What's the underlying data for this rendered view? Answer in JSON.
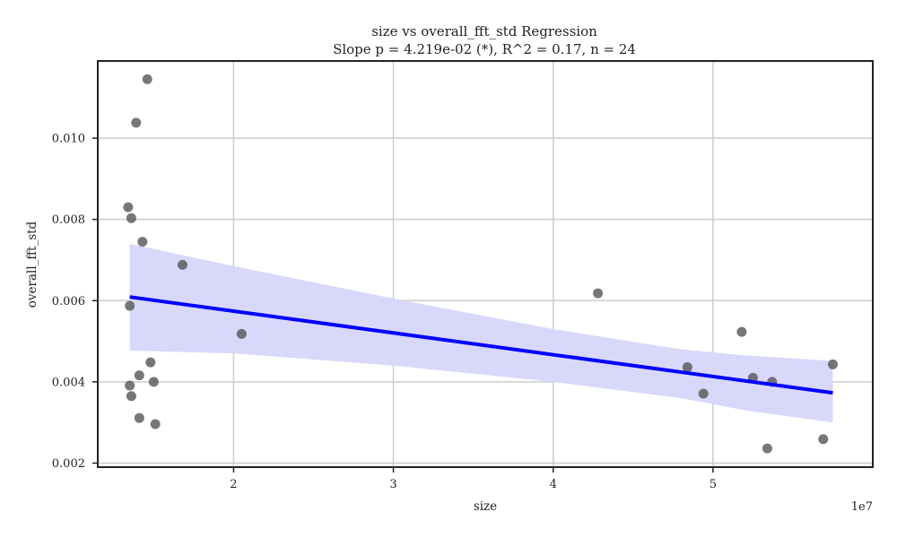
{
  "chart_data": {
    "type": "scatter",
    "title_line1": "size vs overall_fft_std Regression",
    "title_line2": "Slope p = 4.219e-02 (*), R^2 = 0.17, n = 24",
    "xlabel": "size",
    "ylabel": "overall_fft_std",
    "x_offset_label": "1e7",
    "xlim": [
      11500000,
      60000000
    ],
    "ylim": [
      0.0019,
      0.0119
    ],
    "x_ticks": [
      20000000,
      30000000,
      40000000,
      50000000
    ],
    "x_tick_labels": [
      "2",
      "3",
      "4",
      "5"
    ],
    "y_ticks": [
      0.002,
      0.004,
      0.006,
      0.008,
      0.01
    ],
    "y_tick_labels": [
      "0.002",
      "0.004",
      "0.006",
      "0.008",
      "0.010"
    ],
    "grid": true,
    "colors": {
      "points": "#555555",
      "regression_line": "#0000ff",
      "confidence_band": "#d6d6fb",
      "grid": "#cccccc",
      "axes": "#222222"
    },
    "points": [
      {
        "x": 14600000,
        "y": 0.01145
      },
      {
        "x": 13900000,
        "y": 0.01038
      },
      {
        "x": 13400000,
        "y": 0.0083
      },
      {
        "x": 13600000,
        "y": 0.00803
      },
      {
        "x": 14300000,
        "y": 0.00745
      },
      {
        "x": 16800000,
        "y": 0.00688
      },
      {
        "x": 13500000,
        "y": 0.00587
      },
      {
        "x": 20500000,
        "y": 0.00518
      },
      {
        "x": 14800000,
        "y": 0.00448
      },
      {
        "x": 14100000,
        "y": 0.00416
      },
      {
        "x": 15000000,
        "y": 0.004
      },
      {
        "x": 13500000,
        "y": 0.00391
      },
      {
        "x": 13600000,
        "y": 0.00365
      },
      {
        "x": 14100000,
        "y": 0.00311
      },
      {
        "x": 15100000,
        "y": 0.00296
      },
      {
        "x": 42800000,
        "y": 0.00618
      },
      {
        "x": 51800000,
        "y": 0.00523
      },
      {
        "x": 48400000,
        "y": 0.00436
      },
      {
        "x": 52500000,
        "y": 0.0041
      },
      {
        "x": 53700000,
        "y": 0.004
      },
      {
        "x": 49400000,
        "y": 0.00371
      },
      {
        "x": 57500000,
        "y": 0.00443
      },
      {
        "x": 56900000,
        "y": 0.00259
      },
      {
        "x": 53400000,
        "y": 0.00236
      }
    ],
    "regression_line": {
      "x": [
        13500000,
        57500000
      ],
      "y": [
        0.00609,
        0.00373
      ]
    },
    "confidence_band": {
      "x": [
        13500000,
        20000000,
        30000000,
        40000000,
        48000000,
        52000000,
        57500000
      ],
      "upper": [
        0.0074,
        0.00685,
        0.00605,
        0.0053,
        0.0048,
        0.00465,
        0.00452
      ],
      "lower": [
        0.00477,
        0.0047,
        0.0044,
        0.004,
        0.0036,
        0.0033,
        0.003
      ]
    }
  }
}
